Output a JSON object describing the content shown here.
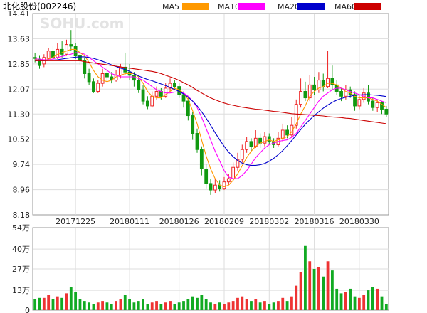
{
  "header": {
    "title": "北化股份(002246)",
    "watermark": "SOHU.com"
  },
  "chart_data": {
    "type": "candlestick",
    "legend": [
      {
        "name": "MA5",
        "color": "#ff9900"
      },
      {
        "name": "MA10",
        "color": "#ff00ff"
      },
      {
        "name": "MA20",
        "color": "#0000cc"
      },
      {
        "name": "MA60",
        "color": "#cc0000"
      }
    ],
    "price_axis": {
      "ylim": [
        8.18,
        14.41
      ],
      "ticks": [
        "14.41",
        "13.63",
        "12.85",
        "12.07",
        "11.30",
        "10.52",
        "9.74",
        "8.96",
        "8.18"
      ],
      "tick_values": [
        14.41,
        13.63,
        12.85,
        12.07,
        11.3,
        10.52,
        9.74,
        8.96,
        8.18
      ]
    },
    "date_axis": {
      "ticks": [
        {
          "label": "20171225",
          "index": 9
        },
        {
          "label": "20180111",
          "index": 21
        },
        {
          "label": "20180126",
          "index": 32
        },
        {
          "label": "20180209",
          "index": 42
        },
        {
          "label": "20180302",
          "index": 52
        },
        {
          "label": "20180316",
          "index": 62
        },
        {
          "label": "20180330",
          "index": 72
        }
      ],
      "count": 79
    },
    "volume_axis": {
      "ylim": [
        0,
        54
      ],
      "ticks": [
        "54万",
        "40万",
        "27万",
        "13万",
        "0"
      ],
      "tick_values": [
        54,
        40,
        27,
        13,
        0
      ]
    },
    "candles": [
      [
        13.05,
        13.02,
        13.2,
        12.9
      ],
      [
        13.0,
        12.8,
        13.1,
        12.7
      ],
      [
        12.85,
        13.05,
        13.15,
        12.75
      ],
      [
        13.02,
        13.25,
        13.35,
        12.95
      ],
      [
        13.25,
        13.05,
        13.4,
        12.95
      ],
      [
        13.05,
        13.3,
        13.5,
        13.0
      ],
      [
        13.3,
        13.15,
        13.55,
        13.05
      ],
      [
        13.15,
        13.45,
        13.6,
        13.1
      ],
      [
        13.45,
        13.4,
        13.9,
        13.25
      ],
      [
        13.4,
        13.1,
        13.5,
        13.0
      ],
      [
        13.1,
        12.95,
        13.2,
        12.8
      ],
      [
        12.95,
        12.55,
        13.05,
        12.4
      ],
      [
        12.55,
        12.3,
        12.7,
        12.2
      ],
      [
        12.3,
        12.0,
        12.4,
        11.95
      ],
      [
        12.0,
        12.25,
        12.35,
        11.95
      ],
      [
        12.25,
        12.55,
        12.7,
        12.15
      ],
      [
        12.55,
        12.45,
        12.75,
        12.3
      ],
      [
        12.45,
        12.35,
        12.6,
        12.25
      ],
      [
        12.35,
        12.5,
        12.65,
        12.3
      ],
      [
        12.5,
        12.75,
        12.85,
        12.4
      ],
      [
        12.75,
        12.6,
        13.2,
        12.5
      ],
      [
        12.6,
        12.5,
        12.85,
        12.35
      ],
      [
        12.5,
        12.35,
        12.6,
        12.15
      ],
      [
        12.35,
        12.05,
        12.45,
        11.95
      ],
      [
        12.05,
        11.7,
        12.2,
        11.6
      ],
      [
        11.7,
        11.55,
        11.85,
        11.45
      ],
      [
        11.55,
        11.85,
        12.0,
        11.5
      ],
      [
        11.85,
        12.0,
        12.15,
        11.75
      ],
      [
        12.0,
        11.85,
        12.1,
        11.75
      ],
      [
        11.85,
        12.1,
        12.25,
        11.8
      ],
      [
        12.1,
        12.25,
        12.4,
        12.0
      ],
      [
        12.25,
        12.15,
        12.35,
        12.05
      ],
      [
        12.15,
        11.9,
        12.25,
        11.8
      ],
      [
        11.9,
        11.7,
        12.0,
        11.5
      ],
      [
        11.7,
        11.25,
        11.8,
        11.1
      ],
      [
        11.25,
        10.7,
        11.35,
        10.5
      ],
      [
        10.7,
        10.2,
        10.85,
        10.1
      ],
      [
        10.2,
        9.6,
        10.3,
        9.4
      ],
      [
        9.6,
        9.15,
        9.75,
        9.0
      ],
      [
        9.15,
        8.95,
        9.3,
        8.8
      ],
      [
        8.95,
        9.1,
        9.3,
        8.85
      ],
      [
        9.1,
        9.0,
        9.25,
        8.9
      ],
      [
        9.0,
        9.2,
        9.35,
        8.95
      ],
      [
        9.2,
        9.3,
        9.45,
        9.1
      ],
      [
        9.3,
        9.65,
        9.8,
        9.25
      ],
      [
        9.65,
        9.9,
        10.1,
        9.55
      ],
      [
        9.9,
        10.2,
        10.35,
        9.8
      ],
      [
        10.2,
        10.45,
        10.6,
        10.1
      ],
      [
        10.45,
        10.3,
        10.55,
        10.15
      ],
      [
        10.3,
        10.55,
        10.8,
        10.25
      ],
      [
        10.55,
        10.4,
        10.7,
        10.25
      ],
      [
        10.4,
        10.6,
        10.75,
        10.3
      ],
      [
        10.6,
        10.45,
        10.7,
        10.35
      ],
      [
        10.45,
        10.35,
        10.55,
        10.25
      ],
      [
        10.35,
        10.55,
        10.75,
        10.3
      ],
      [
        10.55,
        10.8,
        11.0,
        10.45
      ],
      [
        10.8,
        10.65,
        10.95,
        10.55
      ],
      [
        10.65,
        10.95,
        11.2,
        10.6
      ],
      [
        10.95,
        11.6,
        11.75,
        10.85
      ],
      [
        11.6,
        12.0,
        12.4,
        11.5
      ],
      [
        12.0,
        11.8,
        12.3,
        11.7
      ],
      [
        11.8,
        12.2,
        12.5,
        11.7
      ],
      [
        12.2,
        12.05,
        12.45,
        11.9
      ],
      [
        12.05,
        12.35,
        12.6,
        11.95
      ],
      [
        12.35,
        12.15,
        12.55,
        12.0
      ],
      [
        12.15,
        12.4,
        13.25,
        12.1
      ],
      [
        12.4,
        12.2,
        12.8,
        12.05
      ],
      [
        12.2,
        12.0,
        12.35,
        11.9
      ],
      [
        12.0,
        11.85,
        12.1,
        11.7
      ],
      [
        11.85,
        12.05,
        12.2,
        11.75
      ],
      [
        12.05,
        11.9,
        12.15,
        11.8
      ],
      [
        11.9,
        11.55,
        12.0,
        11.4
      ],
      [
        11.55,
        11.75,
        11.9,
        11.45
      ],
      [
        11.75,
        11.95,
        12.1,
        11.65
      ],
      [
        11.95,
        11.7,
        12.2,
        11.6
      ],
      [
        11.7,
        11.5,
        11.8,
        11.4
      ],
      [
        11.5,
        11.65,
        11.75,
        11.35
      ],
      [
        11.65,
        11.45,
        11.7,
        11.3
      ],
      [
        11.45,
        11.3,
        11.55,
        11.2
      ]
    ],
    "volumes": [
      7,
      8,
      8,
      10,
      7,
      9,
      8,
      11,
      15,
      12,
      7,
      6,
      5,
      4,
      5,
      6,
      5,
      4,
      6,
      7,
      10,
      7,
      5,
      6,
      7,
      4,
      5,
      6,
      4,
      5,
      6,
      4,
      5,
      6,
      7,
      9,
      8,
      10,
      7,
      5,
      4,
      5,
      4,
      5,
      6,
      8,
      9,
      7,
      6,
      7,
      5,
      6,
      4,
      5,
      6,
      8,
      6,
      9,
      16,
      25,
      42,
      32,
      27,
      28,
      22,
      32,
      26,
      14,
      11,
      12,
      14,
      9,
      8,
      10,
      13,
      15,
      14,
      9,
      4
    ],
    "ma_series": [
      {
        "name": "MA5",
        "values": [
          13.0,
          12.95,
          12.95,
          13.0,
          13.05,
          13.15,
          13.2,
          13.25,
          13.3,
          13.3,
          13.2,
          13.1,
          12.9,
          12.65,
          12.45,
          12.35,
          12.3,
          12.35,
          12.45,
          12.5,
          12.55,
          12.55,
          12.55,
          12.45,
          12.25,
          12.0,
          11.85,
          11.8,
          11.8,
          11.9,
          12.0,
          12.1,
          12.05,
          11.95,
          11.75,
          11.4,
          11.0,
          10.5,
          10.0,
          9.6,
          9.3,
          9.1,
          9.05,
          9.1,
          9.25,
          9.45,
          9.7,
          9.95,
          10.15,
          10.3,
          10.4,
          10.45,
          10.5,
          10.45,
          10.5,
          10.55,
          10.6,
          10.75,
          11.0,
          11.3,
          11.55,
          11.85,
          12.0,
          12.1,
          12.15,
          12.25,
          12.25,
          12.2,
          12.1,
          12.0,
          11.95,
          11.85,
          11.8,
          11.8,
          11.8,
          11.75,
          11.7,
          11.6,
          11.5
        ]
      },
      {
        "name": "MA10",
        "values": [
          13.0,
          13.0,
          12.98,
          12.98,
          13.0,
          13.05,
          13.08,
          13.12,
          13.15,
          13.2,
          13.2,
          13.15,
          13.05,
          12.95,
          12.85,
          12.75,
          12.65,
          12.55,
          12.5,
          12.45,
          12.45,
          12.45,
          12.45,
          12.4,
          12.35,
          12.25,
          12.15,
          12.05,
          12.0,
          11.95,
          11.95,
          11.98,
          11.98,
          11.95,
          11.85,
          11.7,
          11.5,
          11.2,
          10.85,
          10.5,
          10.15,
          9.85,
          9.55,
          9.35,
          9.3,
          9.3,
          9.4,
          9.55,
          9.75,
          9.95,
          10.1,
          10.25,
          10.35,
          10.4,
          10.45,
          10.48,
          10.5,
          10.58,
          10.7,
          10.9,
          11.1,
          11.3,
          11.5,
          11.7,
          11.85,
          11.95,
          12.05,
          12.1,
          12.1,
          12.05,
          12.0,
          11.95,
          11.9,
          11.85,
          11.8,
          11.8,
          11.75,
          11.7,
          11.65
        ]
      },
      {
        "name": "MA20",
        "values": [
          12.95,
          12.95,
          12.95,
          12.96,
          12.97,
          12.98,
          13.0,
          13.02,
          13.04,
          13.06,
          13.07,
          13.07,
          13.05,
          13.02,
          12.98,
          12.93,
          12.88,
          12.82,
          12.77,
          12.72,
          12.68,
          12.62,
          12.55,
          12.48,
          12.42,
          12.37,
          12.33,
          12.28,
          12.23,
          12.18,
          12.12,
          12.06,
          12.0,
          11.92,
          11.82,
          11.7,
          11.55,
          11.37,
          11.17,
          10.95,
          10.72,
          10.5,
          10.3,
          10.12,
          9.98,
          9.86,
          9.78,
          9.73,
          9.71,
          9.71,
          9.73,
          9.77,
          9.84,
          9.93,
          10.04,
          10.17,
          10.32,
          10.48,
          10.65,
          10.82,
          10.98,
          11.12,
          11.25,
          11.37,
          11.48,
          11.58,
          11.66,
          11.73,
          11.78,
          11.82,
          11.85,
          11.88,
          11.89,
          11.9,
          11.9,
          11.89,
          11.88,
          11.86,
          11.84
        ]
      },
      {
        "name": "MA60",
        "values": [
          12.95,
          12.95,
          12.95,
          12.95,
          12.95,
          12.95,
          12.95,
          12.95,
          12.95,
          12.95,
          12.95,
          12.92,
          12.9,
          12.88,
          12.86,
          12.84,
          12.82,
          12.8,
          12.78,
          12.76,
          12.74,
          12.72,
          12.7,
          12.68,
          12.66,
          12.64,
          12.62,
          12.59,
          12.55,
          12.5,
          12.45,
          12.4,
          12.34,
          12.27,
          12.2,
          12.12,
          12.03,
          11.95,
          11.87,
          11.8,
          11.74,
          11.69,
          11.64,
          11.6,
          11.57,
          11.54,
          11.51,
          11.49,
          11.47,
          11.45,
          11.44,
          11.42,
          11.4,
          11.38,
          11.37,
          11.35,
          11.33,
          11.31,
          11.3,
          11.29,
          11.28,
          11.27,
          11.26,
          11.25,
          11.24,
          11.22,
          11.21,
          11.2,
          11.19,
          11.17,
          11.16,
          11.14,
          11.12,
          11.1,
          11.08,
          11.06,
          11.04,
          11.02,
          11.0
        ]
      }
    ]
  }
}
